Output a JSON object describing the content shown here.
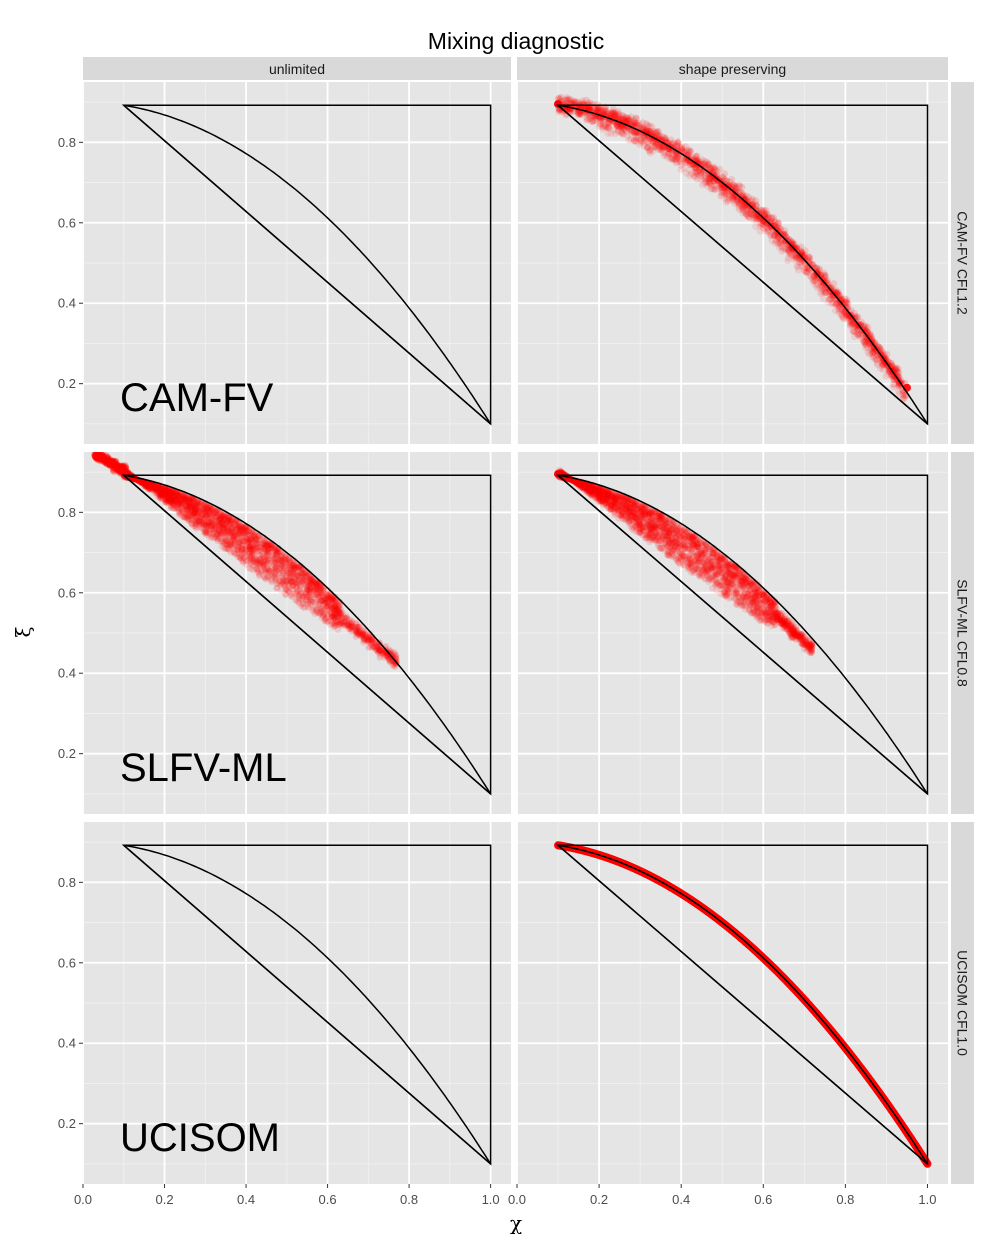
{
  "chart_data": {
    "type": "scatter",
    "title": "Mixing diagnostic",
    "xlabel": "χ",
    "ylabel": "ξ",
    "xlim": [
      0.0,
      1.05
    ],
    "ylim": [
      0.05,
      0.95
    ],
    "xticks": [
      "0.0",
      "0.2",
      "0.4",
      "0.6",
      "0.8",
      "1.0"
    ],
    "yticks": [
      "0.2",
      "0.4",
      "0.6",
      "0.8"
    ],
    "grid": true,
    "columns": [
      "unlimited",
      "shape preserving"
    ],
    "rows": [
      "CAM-FV CFL1.2",
      "SLFV-ML CFL0.8",
      "UCISOM CFL1.0"
    ],
    "row_labels": [
      "CAM-FV",
      "SLFV-ML",
      "UCISOM"
    ],
    "reference": {
      "curve": "ξ = 0.9 - 0.8 χ²",
      "triangle": [
        [
          0.1,
          0.892
        ],
        [
          1.0,
          0.892
        ],
        [
          1.0,
          0.1
        ]
      ],
      "line": [
        [
          0.1,
          0.892
        ],
        [
          1.0,
          0.1
        ]
      ]
    },
    "point_color": "#ff0000",
    "panels": [
      {
        "row": 0,
        "col": 0,
        "points": []
      },
      {
        "row": 0,
        "col": 1,
        "points": "dense band along the curve from χ≈0.10 to χ≈0.95, spread ~0.02"
      },
      {
        "row": 1,
        "col": 0,
        "points": "cloud between the line and the curve, χ≈0.03–0.77, densest χ≈0.1–0.63"
      },
      {
        "row": 1,
        "col": 1,
        "points": "cloud between the line and the curve, χ≈0.10–0.72, densest χ≈0.1–0.63"
      },
      {
        "row": 2,
        "col": 0,
        "points": []
      },
      {
        "row": 2,
        "col": 1,
        "points": "thin band exactly on the curve from χ≈0.10 to χ≈1.0"
      }
    ]
  }
}
